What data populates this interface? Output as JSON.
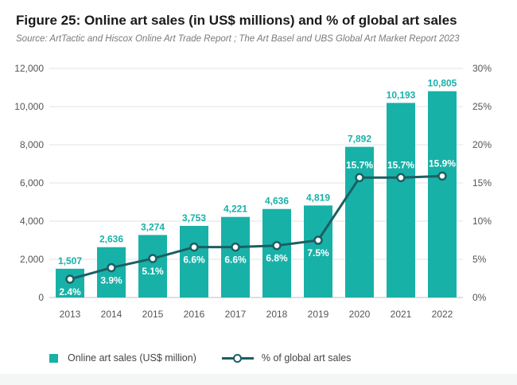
{
  "header": {
    "title": "Figure 25: Online art sales (in US$ millions) and % of global art sales",
    "source": "Source: ArtTactic and Hiscox Online Art Trade Report ; The Art Basel and UBS Global Art Market Report 2023"
  },
  "legend": {
    "bars_label": "Online art sales (US$ million)",
    "line_label": "% of global art sales"
  },
  "colors": {
    "bar": "#18b1a8",
    "line": "#1c5f63",
    "grid": "#e3e3e3",
    "axis_text": "#555555"
  },
  "chart_data": {
    "type": "bar",
    "categories": [
      "2013",
      "2014",
      "2015",
      "2016",
      "2017",
      "2018",
      "2019",
      "2020",
      "2021",
      "2022"
    ],
    "series": [
      {
        "name": "Online art sales (US$ million)",
        "type": "bar",
        "axis": "left",
        "values": [
          1507,
          2636,
          3274,
          3753,
          4221,
          4636,
          4819,
          7892,
          10193,
          10805
        ],
        "labels": [
          "1,507",
          "2,636",
          "3,274",
          "3,753",
          "4,221",
          "4,636",
          "4,819",
          "7,892",
          "10,193",
          "10,805"
        ]
      },
      {
        "name": "% of global art sales",
        "type": "line",
        "axis": "right",
        "values": [
          2.4,
          3.9,
          5.1,
          6.6,
          6.6,
          6.8,
          7.5,
          15.7,
          15.7,
          15.9
        ],
        "labels": [
          "2.4%",
          "3.9%",
          "5.1%",
          "6.6%",
          "6.6%",
          "6.8%",
          "7.5%",
          "15.7%",
          "15.7%",
          "15.9%"
        ]
      }
    ],
    "y_left": {
      "ylim": [
        0,
        12000
      ],
      "ticks": [
        0,
        2000,
        4000,
        6000,
        8000,
        10000,
        12000
      ],
      "tick_labels": [
        "0",
        "2,000",
        "4,000",
        "6,000",
        "8,000",
        "10,000",
        "12,000"
      ]
    },
    "y_right": {
      "ylim": [
        0,
        30
      ],
      "ticks": [
        0,
        5,
        10,
        15,
        20,
        25,
        30
      ],
      "tick_labels": [
        "0%",
        "5%",
        "10%",
        "15%",
        "20%",
        "25%",
        "30%"
      ]
    },
    "grid": true,
    "legend_position": "bottom-left"
  }
}
